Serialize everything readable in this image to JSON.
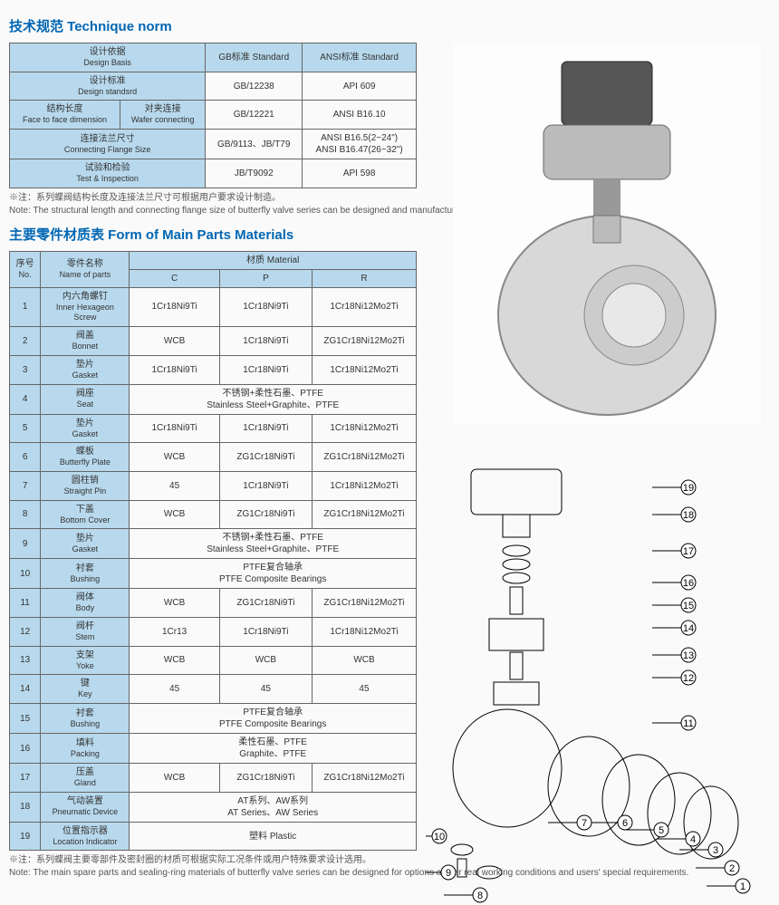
{
  "t1_title": "技术规范 Technique norm",
  "t1": {
    "h1_cn": "设计依据",
    "h1_en": "Design Basis",
    "h2_cn": "GB标准 Standard",
    "h3_cn": "ANSI标准 Standard",
    "r1_cn": "设计标准",
    "r1_en": "Design standsrd",
    "r1_gb": "GB/12238",
    "r1_an": "API 609",
    "r2a_cn": "结构长度",
    "r2a_en": "Face to face dimension",
    "r2b_cn": "对夹连接",
    "r2b_en": "Wafer connecting",
    "r2_gb": "GB/12221",
    "r2_an": "ANSI B16.10",
    "r3_cn": "连接法兰尺寸",
    "r3_en": "Connecting Flange Size",
    "r3_gb": "GB/9113、JB/T79",
    "r3_an": "ANSI B16.5(2~24\")\nANSI B16.47(26~32\")",
    "r4_cn": "试验和检验",
    "r4_en": "Test & Inspection",
    "r4_gb": "JB/T9092",
    "r4_an": "API 598"
  },
  "note1": "※注：系列蝶阀结构长度及连接法兰尺寸可根据用户要求设计制造。\nNote: The structural length and connecting flange size of butterfly valve series can be designed and manufactured as per users' requirements.",
  "t2_title": "主要零件材质表 Form of Main Parts Materials",
  "t2_hdr": {
    "no_cn": "序号",
    "no_en": "No.",
    "name_cn": "零件名称",
    "name_en": "Name of parts",
    "mat": "材质 Material",
    "c": "C",
    "p": "P",
    "r": "R"
  },
  "rows": [
    {
      "n": "1",
      "cn": "内六角螺钉",
      "en": "Inner Hexageon Screw",
      "c": "1Cr18Ni9Ti",
      "p": "1Cr18Ni9Ti",
      "r": "1Cr18Ni12Mo2Ti"
    },
    {
      "n": "2",
      "cn": "阀盖",
      "en": "Bonnet",
      "c": "WCB",
      "p": "1Cr18Ni9Ti",
      "r": "ZG1Cr18Ni12Mo2Ti"
    },
    {
      "n": "3",
      "cn": "垫片",
      "en": "Gasket",
      "c": "1Cr18Ni9Ti",
      "p": "1Cr18Ni9Ti",
      "r": "1Cr18Ni12Mo2Ti"
    },
    {
      "n": "4",
      "cn": "阀座",
      "en": "Seat",
      "span": "不锈钢+柔性石墨、PTFE\nStainless Steel+Graphite、PTFE"
    },
    {
      "n": "5",
      "cn": "垫片",
      "en": "Gasket",
      "c": "1Cr18Ni9Ti",
      "p": "1Cr18Ni9Ti",
      "r": "1Cr18Ni12Mo2Ti"
    },
    {
      "n": "6",
      "cn": "蝶板",
      "en": "Butterfly Plate",
      "c": "WCB",
      "p": "ZG1Cr18Ni9Ti",
      "r": "ZG1Cr18Ni12Mo2Ti"
    },
    {
      "n": "7",
      "cn": "圆柱销",
      "en": "Straight Pin",
      "c": "45",
      "p": "1Cr18Ni9Ti",
      "r": "1Cr18Ni12Mo2Ti"
    },
    {
      "n": "8",
      "cn": "下盖",
      "en": "Bottom Cover",
      "c": "WCB",
      "p": "ZG1Cr18Ni9Ti",
      "r": "ZG1Cr18Ni12Mo2Ti"
    },
    {
      "n": "9",
      "cn": "垫片",
      "en": "Gasket",
      "span": "不锈钢+柔性石墨、PTFE\nStainless Steel+Graphite、PTFE"
    },
    {
      "n": "10",
      "cn": "衬套",
      "en": "Bushing",
      "span": "PTFE复合轴承\nPTFE Composite Bearings"
    },
    {
      "n": "11",
      "cn": "阀体",
      "en": "Body",
      "c": "WCB",
      "p": "ZG1Cr18Ni9Ti",
      "r": "ZG1Cr18Ni12Mo2Ti"
    },
    {
      "n": "12",
      "cn": "阀杆",
      "en": "Stem",
      "c": "1Cr13",
      "p": "1Cr18Ni9Ti",
      "r": "1Cr18Ni12Mo2Ti"
    },
    {
      "n": "13",
      "cn": "支架",
      "en": "Yoke",
      "c": "WCB",
      "p": "WCB",
      "r": "WCB"
    },
    {
      "n": "14",
      "cn": "键",
      "en": "Key",
      "c": "45",
      "p": "45",
      "r": "45"
    },
    {
      "n": "15",
      "cn": "衬套",
      "en": "Bushing",
      "span": "PTFE复合轴承\nPTFE Composite Bearings"
    },
    {
      "n": "16",
      "cn": "填料",
      "en": "Packing",
      "span": "柔性石墨、PTFE\nGraphite、PTFE"
    },
    {
      "n": "17",
      "cn": "压盖",
      "en": "Gland",
      "c": "WCB",
      "p": "ZG1Cr18Ni9Ti",
      "r": "ZG1Cr18Ni12Mo2Ti"
    },
    {
      "n": "18",
      "cn": "气动装置",
      "en": "Pneumatic Device",
      "span": "AT系列、AW系列\nAT Series、AW Series"
    },
    {
      "n": "19",
      "cn": "位置指示器",
      "en": "Location Indicator",
      "span": "塑料 Plastic"
    }
  ],
  "note2": "※注：系列蝶阀主要零部件及密封圈的材质可根据实际工况条件或用户特殊要求设计选用。\nNote: The main spare parts and sealing-ring materials of butterfly valve series can be designed for options as per real working conditions and users' special requirements.",
  "labels": [
    "1",
    "2",
    "3",
    "4",
    "5",
    "6",
    "7",
    "8",
    "9",
    "10",
    "11",
    "12",
    "13",
    "14",
    "15",
    "16",
    "17",
    "18",
    "19"
  ],
  "colors": {
    "hdr": "#b8d9ed",
    "border": "#666666",
    "title": "#0066b3"
  }
}
